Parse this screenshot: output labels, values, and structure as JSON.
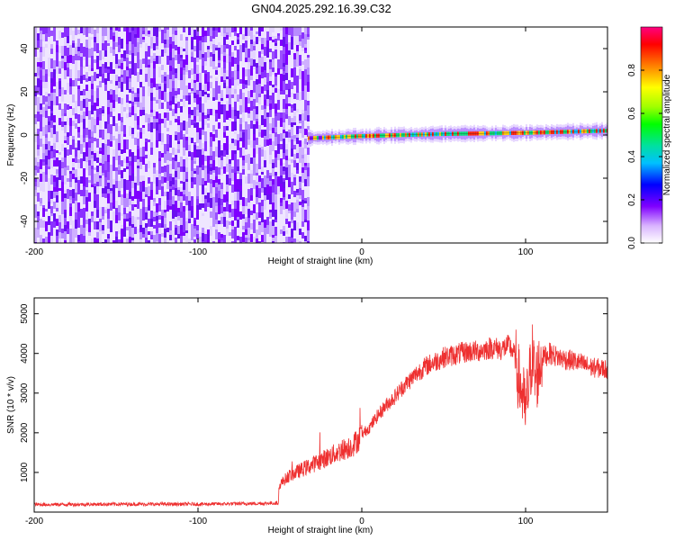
{
  "title": "GN04.2025.292.16.39.C32",
  "chart_data": [
    {
      "type": "heatmap",
      "xlabel": "Height of straight line (km)",
      "ylabel": "Frequency (Hz)",
      "xlim": [
        -200,
        150
      ],
      "ylim": [
        -50,
        50
      ],
      "xticks": [
        -200,
        -100,
        0,
        100
      ],
      "yticks": [
        -40,
        -20,
        0,
        20,
        40
      ],
      "noise_region_x": [
        -200,
        -33
      ],
      "signal_band": {
        "x_start": -33,
        "x_end": 150,
        "center_hz": [
          [
            -33,
            -1.5
          ],
          [
            0,
            -0.5
          ],
          [
            50,
            0.5
          ],
          [
            100,
            1
          ],
          [
            150,
            2
          ]
        ]
      },
      "colorbar": {
        "label": "Normalized spectral amplitude",
        "range": [
          0,
          1
        ],
        "ticks": [
          0.0,
          0.2,
          0.4,
          0.6,
          0.8
        ],
        "colormap": "rainbow",
        "colors": [
          "#ffffff",
          "#d9b3ff",
          "#7f00ff",
          "#0000ff",
          "#00c0ff",
          "#00e0a0",
          "#00ff00",
          "#a0ff00",
          "#ffff00",
          "#ff8000",
          "#ff0000",
          "#ff0080"
        ]
      },
      "grid": false
    },
    {
      "type": "line",
      "xlabel": "Height of straight line (km)",
      "ylabel": "SNR (10 * v/v)",
      "xlim": [
        -200,
        150
      ],
      "ylim": [
        0,
        5400
      ],
      "xticks": [
        -200,
        -100,
        0,
        100
      ],
      "yticks": [
        1000,
        2000,
        3000,
        4000,
        5000
      ],
      "grid": false,
      "series": [
        {
          "color": "#ee3030",
          "x": [
            -200,
            -150,
            -100,
            -60,
            -51,
            -50,
            -45,
            -40,
            -35,
            -30,
            -25,
            -20,
            -15,
            -10,
            -5,
            0,
            5,
            10,
            15,
            20,
            25,
            30,
            35,
            40,
            45,
            50,
            55,
            60,
            65,
            70,
            75,
            80,
            85,
            90,
            93,
            96,
            98,
            100,
            102,
            104,
            106,
            108,
            110,
            115,
            120,
            130,
            140,
            150
          ],
          "y": [
            190,
            200,
            200,
            220,
            230,
            700,
            900,
            1000,
            1100,
            1200,
            1300,
            1400,
            1500,
            1600,
            1700,
            1950,
            2150,
            2450,
            2700,
            2900,
            3150,
            3350,
            3550,
            3700,
            3800,
            3900,
            3950,
            4000,
            4050,
            4050,
            4100,
            4150,
            4100,
            4200,
            4000,
            3300,
            3000,
            2500,
            3200,
            4000,
            3300,
            3600,
            3900,
            4000,
            3900,
            3800,
            3650,
            3600
          ]
        }
      ]
    }
  ]
}
